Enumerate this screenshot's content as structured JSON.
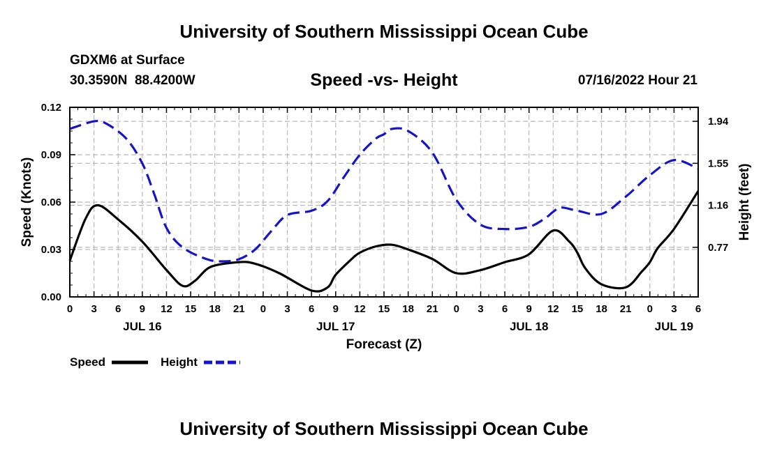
{
  "header": {
    "title": "University of Southern Mississippi Ocean Cube",
    "station": "GDXM6 at Surface",
    "coords": "30.3590N  88.4200W",
    "subtitle": "Speed -vs- Height",
    "datetime": "07/16/2022 Hour 21"
  },
  "footer": {
    "title": "University of Southern Mississippi Ocean Cube"
  },
  "legend": {
    "items": [
      {
        "label": "Speed",
        "color": "#000000",
        "dash": "solid"
      },
      {
        "label": "Height",
        "color": "#1414c8",
        "dash": "dashed"
      }
    ]
  },
  "chart_data": {
    "type": "line",
    "xlabel": "Forecast (Z)",
    "ylabel": "Speed (Knots)",
    "y2label": "Height (feet)",
    "grid": true,
    "x_unit": "hours since 07/16 00Z",
    "xlim": [
      0,
      78
    ],
    "x_ticks": [
      0,
      3,
      6,
      9,
      12,
      15,
      18,
      21,
      24,
      27,
      30,
      33,
      36,
      39,
      42,
      45,
      48,
      51,
      54,
      57,
      60,
      63,
      66,
      69,
      72,
      75,
      78
    ],
    "x_tick_labels": [
      "0",
      "3",
      "6",
      "9",
      "12",
      "15",
      "18",
      "21",
      "0",
      "3",
      "6",
      "9",
      "12",
      "15",
      "18",
      "21",
      "0",
      "3",
      "6",
      "9",
      "12",
      "15",
      "18",
      "21",
      "0",
      "3",
      "6"
    ],
    "date_labels": [
      {
        "x": 9,
        "label": "JUL 16"
      },
      {
        "x": 33,
        "label": "JUL 17"
      },
      {
        "x": 57,
        "label": "JUL 18"
      },
      {
        "x": 75,
        "label": "JUL 19"
      }
    ],
    "ylim": [
      0,
      0.12
    ],
    "y_ticks": [
      0,
      0.03,
      0.06,
      0.09,
      0.12
    ],
    "y_tick_labels": [
      "0.00",
      "0.03",
      "0.06",
      "0.09",
      "0.12"
    ],
    "y2lim": [
      0.31,
      2.07
    ],
    "y2_ticks": [
      0.77,
      1.16,
      1.55,
      1.94
    ],
    "y2_tick_labels": [
      "0.77",
      "1.16",
      "1.55",
      "1.94"
    ],
    "series": [
      {
        "name": "Speed",
        "axis": "left",
        "x": [
          0,
          2,
          3.5,
          6,
          9,
          12,
          14,
          15.5,
          17.5,
          21,
          23,
          26,
          30,
          32,
          33,
          35,
          36,
          38,
          40,
          42,
          45,
          48,
          51,
          54,
          57,
          60,
          62,
          63,
          64,
          66,
          69,
          71,
          72,
          73,
          75,
          78
        ],
        "y": [
          0.023,
          0.05,
          0.058,
          0.049,
          0.035,
          0.017,
          0.007,
          0.01,
          0.019,
          0.022,
          0.021,
          0.015,
          0.004,
          0.006,
          0.014,
          0.024,
          0.028,
          0.032,
          0.033,
          0.03,
          0.024,
          0.015,
          0.017,
          0.022,
          0.027,
          0.042,
          0.035,
          0.028,
          0.018,
          0.008,
          0.006,
          0.016,
          0.022,
          0.031,
          0.043,
          0.067
        ]
      },
      {
        "name": "Height",
        "axis": "right",
        "x": [
          0,
          3,
          4.5,
          7,
          9,
          10.5,
          12,
          14,
          17,
          19,
          21,
          23,
          25,
          27,
          30,
          32,
          34,
          36,
          38,
          39,
          40,
          42,
          45,
          48,
          51,
          54,
          57,
          59,
          60,
          61,
          63,
          66,
          69,
          72,
          75,
          78
        ],
        "y": [
          1.87,
          1.94,
          1.92,
          1.78,
          1.55,
          1.26,
          0.95,
          0.77,
          0.66,
          0.64,
          0.66,
          0.75,
          0.92,
          1.07,
          1.11,
          1.2,
          1.42,
          1.63,
          1.78,
          1.82,
          1.87,
          1.85,
          1.65,
          1.21,
          0.98,
          0.94,
          0.96,
          1.04,
          1.1,
          1.14,
          1.11,
          1.08,
          1.24,
          1.44,
          1.58,
          1.5
        ]
      }
    ]
  }
}
